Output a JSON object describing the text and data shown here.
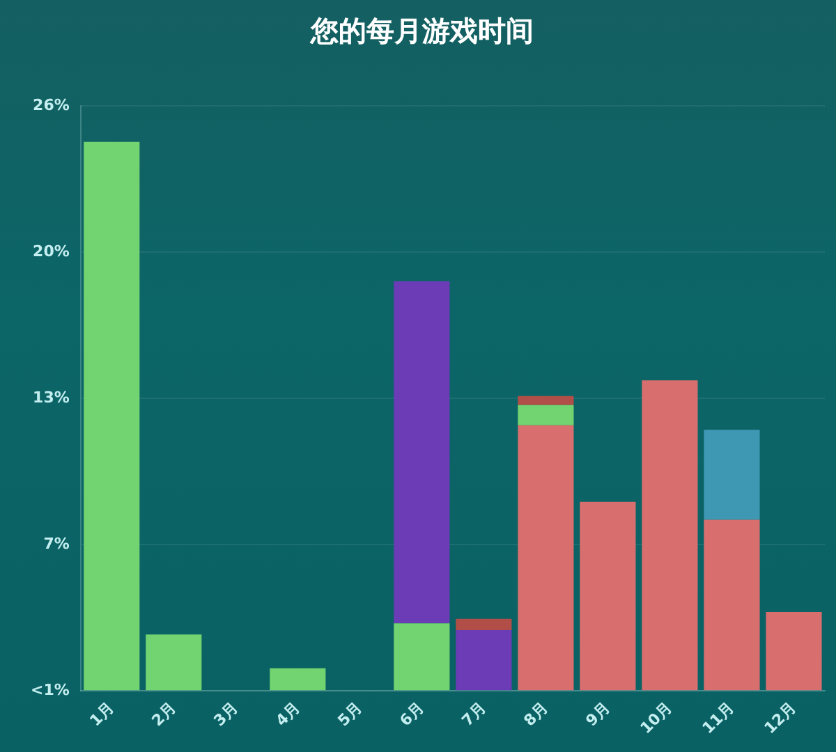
{
  "chart_data": {
    "type": "bar",
    "title": "您的每月游戏时间",
    "categories": [
      "1月",
      "2月",
      "3月",
      "4月",
      "5月",
      "6月",
      "7月",
      "8月",
      "9月",
      "10月",
      "11月",
      "12月"
    ],
    "series": [
      {
        "color": "#d86f6e",
        "values": [
          null,
          null,
          null,
          null,
          null,
          null,
          null,
          11.8,
          8.4,
          13.8,
          7.6,
          3.5
        ]
      },
      {
        "color": "#72d470",
        "values": [
          24.4,
          2.5,
          null,
          1.0,
          null,
          3.0,
          null,
          0.9,
          null,
          null,
          null,
          null
        ]
      },
      {
        "color": "#6c3bb6",
        "values": [
          null,
          null,
          null,
          null,
          null,
          15.2,
          2.7,
          null,
          null,
          null,
          null,
          null
        ]
      },
      {
        "color": "#b24e48",
        "values": [
          null,
          null,
          null,
          null,
          null,
          null,
          0.5,
          0.4,
          null,
          null,
          null,
          null
        ]
      },
      {
        "color": "#3e98b3",
        "values": [
          null,
          null,
          null,
          null,
          null,
          null,
          null,
          null,
          null,
          null,
          4.0,
          null
        ]
      }
    ],
    "stacked": true,
    "ylim": [
      0,
      26
    ],
    "yticks": [
      {
        "value": 0,
        "label": "<1%"
      },
      {
        "value": 6.5,
        "label": "7%"
      },
      {
        "value": 13,
        "label": "13%"
      },
      {
        "value": 19.5,
        "label": "20%"
      },
      {
        "value": 26,
        "label": "26%"
      }
    ],
    "grid": "y",
    "legend": false
  }
}
